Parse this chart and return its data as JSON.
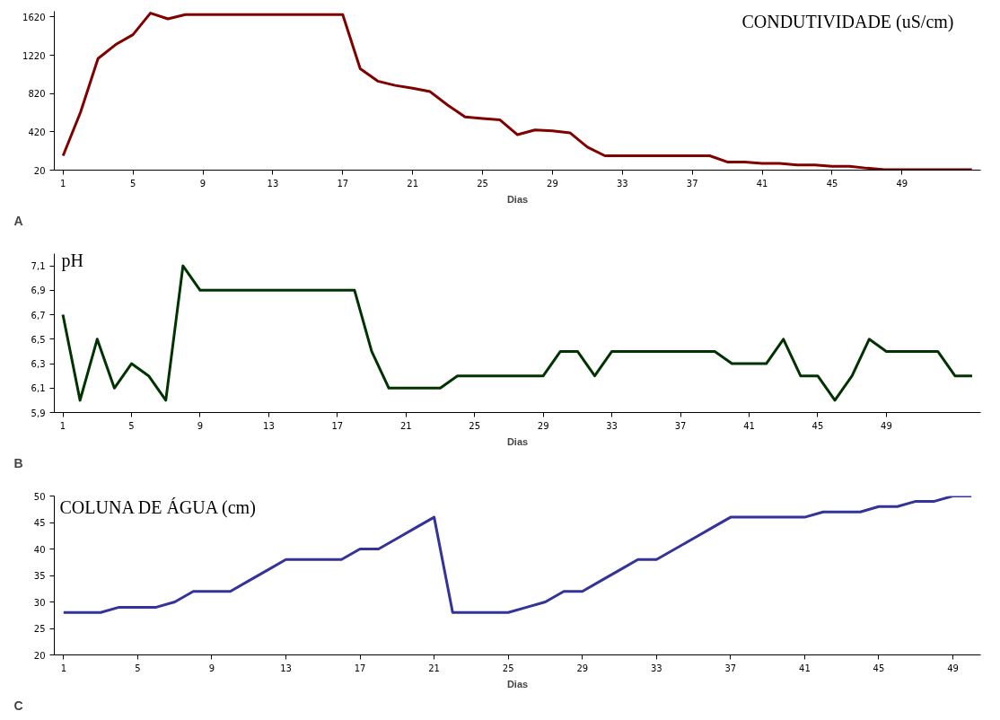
{
  "chart_data": [
    {
      "type": "line",
      "title": "CONDUTIVIDADE (uS/cm)",
      "xlabel": "Dias",
      "annotations": [
        "A"
      ],
      "x": [
        1,
        2,
        3,
        4,
        5,
        6,
        7,
        8,
        9,
        10,
        11,
        12,
        13,
        14,
        15,
        16,
        17,
        18,
        19,
        20,
        21,
        22,
        23,
        24,
        25,
        26,
        27,
        28,
        29,
        30,
        31,
        32,
        33,
        34,
        35,
        36,
        37,
        38,
        39,
        40,
        41,
        42,
        43,
        44,
        45,
        46,
        47,
        48,
        49,
        50,
        51,
        52,
        53
      ],
      "series": [
        {
          "color": "#800000",
          "values": [
            170,
            625,
            1185,
            1330,
            1435,
            1660,
            1600,
            1645,
            1645,
            1645,
            1645,
            1645,
            1645,
            1645,
            1645,
            1645,
            1645,
            1080,
            950,
            905,
            875,
            840,
            700,
            575,
            560,
            545,
            390,
            440,
            430,
            410,
            260,
            170,
            170,
            170,
            170,
            170,
            170,
            170,
            105,
            105,
            90,
            90,
            75,
            75,
            60,
            60,
            40,
            25,
            25,
            25,
            25,
            25,
            25
          ]
        }
      ],
      "xlim": [
        0.5,
        53.5
      ],
      "ylim": [
        20,
        1680
      ],
      "xticks": [
        1,
        5,
        9,
        13,
        17,
        21,
        25,
        29,
        33,
        37,
        41,
        45,
        49
      ],
      "yticks": [
        20,
        420,
        820,
        1220,
        1620
      ],
      "grid": false
    },
    {
      "type": "line",
      "title": "pH",
      "xlabel": "Dias",
      "annotations": [
        "B"
      ],
      "x": [
        1,
        2,
        3,
        4,
        5,
        6,
        7,
        8,
        9,
        10,
        11,
        12,
        13,
        14,
        15,
        16,
        17,
        18,
        19,
        20,
        21,
        22,
        23,
        24,
        25,
        26,
        27,
        28,
        29,
        30,
        31,
        32,
        33,
        34,
        35,
        36,
        37,
        38,
        39,
        40,
        41,
        42,
        43,
        44,
        45,
        46,
        47,
        48,
        49,
        50,
        51,
        52,
        53,
        54
      ],
      "series": [
        {
          "color": "#003300",
          "values": [
            6.7,
            6.0,
            6.5,
            6.1,
            6.3,
            6.2,
            6.0,
            7.1,
            6.9,
            6.9,
            6.9,
            6.9,
            6.9,
            6.9,
            6.9,
            6.9,
            6.9,
            6.9,
            6.4,
            6.1,
            6.1,
            6.1,
            6.1,
            6.2,
            6.2,
            6.2,
            6.2,
            6.2,
            6.2,
            6.4,
            6.4,
            6.2,
            6.4,
            6.4,
            6.4,
            6.4,
            6.4,
            6.4,
            6.4,
            6.3,
            6.3,
            6.3,
            6.5,
            6.2,
            6.2,
            6.0,
            6.2,
            6.5,
            6.4,
            6.4,
            6.4,
            6.4,
            6.2,
            6.2
          ]
        }
      ],
      "xlim": [
        0.5,
        54.5
      ],
      "ylim": [
        5.9,
        7.2
      ],
      "xticks": [
        1,
        5,
        9,
        13,
        17,
        21,
        25,
        29,
        33,
        37,
        41,
        45,
        49
      ],
      "yticks": [
        {
          "value": 5.9,
          "label": "5,9"
        },
        {
          "value": 6.1,
          "label": "6,1"
        },
        {
          "value": 6.3,
          "label": "6,3"
        },
        {
          "value": 6.5,
          "label": "6,5"
        },
        {
          "value": 6.7,
          "label": "6,7"
        },
        {
          "value": 6.9,
          "label": "6,9"
        },
        {
          "value": 7.1,
          "label": "7,1"
        }
      ],
      "grid": false
    },
    {
      "type": "line",
      "title": "COLUNA DE ÁGUA (cm)",
      "xlabel": "Dias",
      "annotations": [
        "C"
      ],
      "x": [
        1,
        2,
        3,
        4,
        5,
        6,
        7,
        8,
        9,
        10,
        11,
        12,
        13,
        14,
        15,
        16,
        17,
        18,
        19,
        20,
        21,
        22,
        23,
        24,
        25,
        26,
        27,
        28,
        29,
        30,
        31,
        32,
        33,
        34,
        35,
        36,
        37,
        38,
        39,
        40,
        41,
        42,
        43,
        44,
        45,
        46,
        47,
        48,
        49,
        50
      ],
      "series": [
        {
          "color": "#333399",
          "values": [
            28,
            28,
            28,
            29,
            29,
            29,
            30,
            32,
            32,
            32,
            34,
            36,
            38,
            38,
            38,
            38,
            40,
            40,
            42,
            44,
            46,
            28,
            28,
            28,
            28,
            29,
            30,
            32,
            32,
            34,
            36,
            38,
            38,
            40,
            42,
            44,
            46,
            46,
            46,
            46,
            46,
            47,
            47,
            47,
            48,
            48,
            49,
            49,
            50,
            50
          ]
        }
      ],
      "xlim": [
        0.5,
        50.5
      ],
      "ylim": [
        20,
        50
      ],
      "xticks": [
        1,
        5,
        9,
        13,
        17,
        21,
        25,
        29,
        33,
        37,
        41,
        45,
        49
      ],
      "yticks": [
        20,
        25,
        30,
        35,
        40,
        45,
        50
      ],
      "grid": false
    }
  ]
}
